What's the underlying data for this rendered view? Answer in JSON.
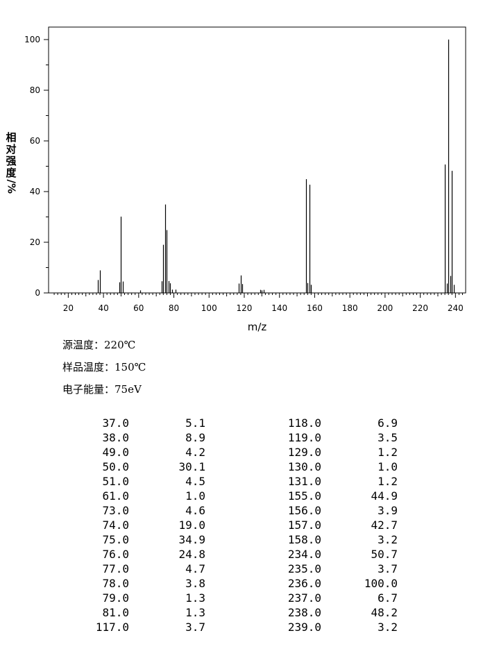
{
  "chart_data": {
    "type": "bar",
    "xlabel": "m/z",
    "ylabel": "相对强度/%",
    "xlim": [
      10,
      245
    ],
    "ylim": [
      0,
      105
    ],
    "x_ticks": [
      20,
      40,
      60,
      80,
      100,
      120,
      140,
      160,
      180,
      200,
      220,
      240
    ],
    "y_ticks": [
      0,
      20,
      40,
      60,
      80,
      100
    ],
    "grid": false,
    "peaks": [
      {
        "mz": 37.0,
        "intensity": 5.1
      },
      {
        "mz": 38.0,
        "intensity": 8.9
      },
      {
        "mz": 49.0,
        "intensity": 4.2
      },
      {
        "mz": 50.0,
        "intensity": 30.1
      },
      {
        "mz": 51.0,
        "intensity": 4.5
      },
      {
        "mz": 61.0,
        "intensity": 1.0
      },
      {
        "mz": 73.0,
        "intensity": 4.6
      },
      {
        "mz": 74.0,
        "intensity": 19.0
      },
      {
        "mz": 75.0,
        "intensity": 34.9
      },
      {
        "mz": 76.0,
        "intensity": 24.8
      },
      {
        "mz": 77.0,
        "intensity": 4.7
      },
      {
        "mz": 78.0,
        "intensity": 3.8
      },
      {
        "mz": 79.0,
        "intensity": 1.3
      },
      {
        "mz": 81.0,
        "intensity": 1.3
      },
      {
        "mz": 117.0,
        "intensity": 3.7
      },
      {
        "mz": 118.0,
        "intensity": 6.9
      },
      {
        "mz": 119.0,
        "intensity": 3.5
      },
      {
        "mz": 129.0,
        "intensity": 1.2
      },
      {
        "mz": 130.0,
        "intensity": 1.0
      },
      {
        "mz": 131.0,
        "intensity": 1.2
      },
      {
        "mz": 155.0,
        "intensity": 44.9
      },
      {
        "mz": 156.0,
        "intensity": 3.9
      },
      {
        "mz": 157.0,
        "intensity": 42.7
      },
      {
        "mz": 158.0,
        "intensity": 3.2
      },
      {
        "mz": 234.0,
        "intensity": 50.7
      },
      {
        "mz": 235.0,
        "intensity": 3.7
      },
      {
        "mz": 236.0,
        "intensity": 100.0
      },
      {
        "mz": 237.0,
        "intensity": 6.7
      },
      {
        "mz": 238.0,
        "intensity": 48.2
      },
      {
        "mz": 239.0,
        "intensity": 3.2
      }
    ]
  },
  "conditions": {
    "source_temp": "源温度：220℃",
    "sample_temp": "样品温度：150℃",
    "electron_energy": "电子能量：75eV"
  },
  "table": {
    "rows": [
      [
        "37.0",
        "5.1",
        "118.0",
        "6.9"
      ],
      [
        "38.0",
        "8.9",
        "119.0",
        "3.5"
      ],
      [
        "49.0",
        "4.2",
        "129.0",
        "1.2"
      ],
      [
        "50.0",
        "30.1",
        "130.0",
        "1.0"
      ],
      [
        "51.0",
        "4.5",
        "131.0",
        "1.2"
      ],
      [
        "61.0",
        "1.0",
        "155.0",
        "44.9"
      ],
      [
        "73.0",
        "4.6",
        "156.0",
        "3.9"
      ],
      [
        "74.0",
        "19.0",
        "157.0",
        "42.7"
      ],
      [
        "75.0",
        "34.9",
        "158.0",
        "3.2"
      ],
      [
        "76.0",
        "24.8",
        "234.0",
        "50.7"
      ],
      [
        "77.0",
        "4.7",
        "235.0",
        "3.7"
      ],
      [
        "78.0",
        "3.8",
        "236.0",
        "100.0"
      ],
      [
        "79.0",
        "1.3",
        "237.0",
        "6.7"
      ],
      [
        "81.0",
        "1.3",
        "238.0",
        "48.2"
      ],
      [
        "117.0",
        "3.7",
        "239.0",
        "3.2"
      ]
    ]
  }
}
